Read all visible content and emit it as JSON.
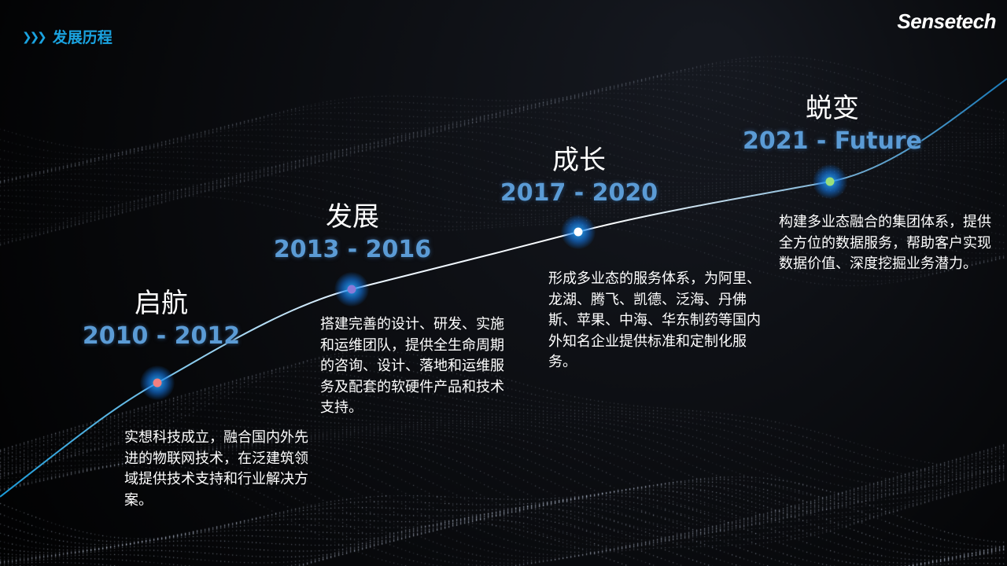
{
  "header": {
    "icon": "triple-chevron-right-icon",
    "title": "发展历程"
  },
  "logo": "Sensetech",
  "colors": {
    "accent": "#1aa3e0",
    "years": "#5b9bd5"
  },
  "stages": [
    {
      "name": "启航",
      "years": "2010 - 2012",
      "desc": "实想科技成立，融合国内外先进的物联网技术，在泛建筑领域提供技术支持和行业解决方案。",
      "dot_color": "#f08080"
    },
    {
      "name": "发展",
      "years": "2013 - 2016",
      "desc": "搭建完善的设计、研发、实施和运维团队，提供全生命周期的咨询、设计、落地和运维服务及配套的软硬件产品和技术支持。",
      "dot_color": "#8a7ad8"
    },
    {
      "name": "成长",
      "years": "2017 - 2020",
      "desc": "形成多业态的服务体系，为阿里、龙湖、腾飞、凯德、泛海、丹佛斯、苹果、中海、华东制药等国内外知名企业提供标准和定制化服务。",
      "dot_color": "#ffffff"
    },
    {
      "name": "蜕变",
      "years": "2021 - Future",
      "desc": "构建多业态融合的集团体系，提供全方位的数据服务，帮助客户实现数据价值、深度挖掘业务潜力。",
      "dot_color": "#9be07a"
    }
  ]
}
